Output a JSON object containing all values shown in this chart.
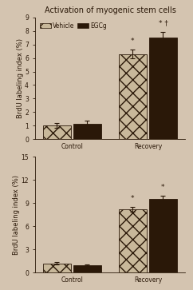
{
  "title": "Activation of myogenic stem cells",
  "background_color": "#d4c4b0",
  "bar_color_vehicle": "#c8b89a",
  "bar_color_egcg": "#2a1808",
  "hatch_vehicle": "xx",
  "ylabel": "BrdU labeling index (%)",
  "xlabel_groups": [
    "Control",
    "Recovery"
  ],
  "legend_labels": [
    "Vehicle",
    "EGCg"
  ],
  "top_chart": {
    "vehicle_control": 1.0,
    "vehicle_control_err": 0.18,
    "egcg_control": 1.15,
    "egcg_control_err": 0.2,
    "vehicle_recovery": 6.3,
    "vehicle_recovery_err": 0.3,
    "egcg_recovery": 7.5,
    "egcg_recovery_err": 0.45,
    "ylim": [
      0,
      9
    ],
    "yticks": [
      0,
      1,
      2,
      3,
      4,
      5,
      6,
      7,
      8,
      9
    ],
    "annot_vehicle_recovery": "*",
    "annot_egcg_recovery": "* †"
  },
  "bottom_chart": {
    "vehicle_control": 1.2,
    "vehicle_control_err": 0.15,
    "egcg_control": 0.95,
    "egcg_control_err": 0.12,
    "vehicle_recovery": 8.2,
    "vehicle_recovery_err": 0.3,
    "egcg_recovery": 9.5,
    "egcg_recovery_err": 0.45,
    "ylim": [
      0,
      15
    ],
    "yticks": [
      0,
      3,
      6,
      9,
      12,
      15
    ],
    "annot_vehicle_recovery": "*",
    "annot_egcg_recovery": "*"
  },
  "font_color": "#2a1808",
  "title_fontsize": 7.0,
  "label_fontsize": 6.0,
  "tick_fontsize": 5.5,
  "legend_fontsize": 5.5,
  "annot_fontsize": 6.5
}
